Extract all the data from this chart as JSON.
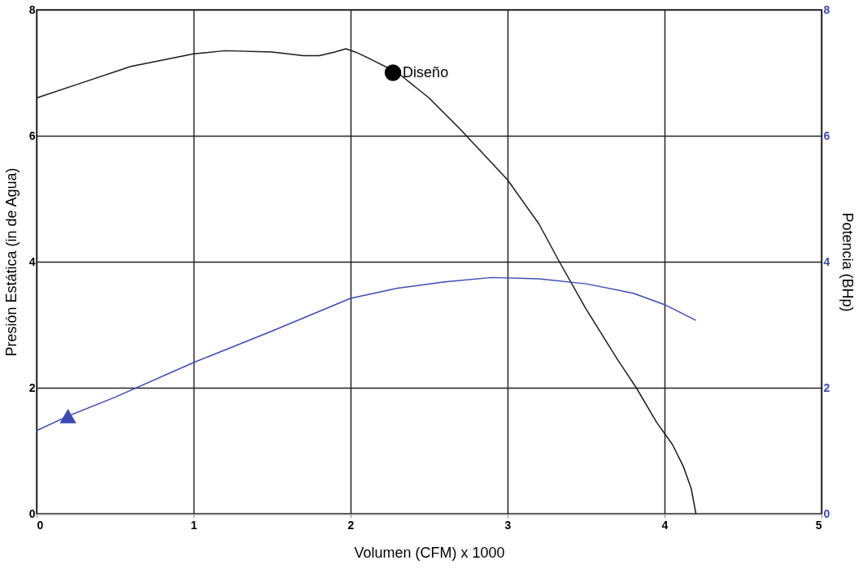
{
  "chart_data": {
    "type": "line",
    "xlabel": "Volumen  (CFM) x 1000",
    "ylabel": "Presión Estática (in de Agua)",
    "y2label": "Potencia (BHp)",
    "xlim": [
      0,
      5
    ],
    "xticks": [
      0,
      1,
      2,
      3,
      4,
      5
    ],
    "ylim": [
      0,
      8
    ],
    "yticks": [
      0,
      2,
      4,
      6,
      8
    ],
    "y2lim": [
      0,
      8
    ],
    "y2ticks": [
      0,
      2,
      4,
      6,
      8
    ],
    "grid": true,
    "series": [
      {
        "color": "#1a1a1a",
        "axis": "y",
        "x": [
          0,
          0.3,
          0.6,
          1.0,
          1.2,
          1.5,
          1.7,
          1.8,
          1.9,
          1.97,
          2.03,
          2.1,
          2.3,
          2.5,
          2.7,
          3.0,
          3.2,
          3.33,
          3.5,
          3.7,
          3.82,
          3.95,
          4.05,
          4.12,
          4.17,
          4.2
        ],
        "values": [
          6.6,
          6.85,
          7.1,
          7.3,
          7.35,
          7.33,
          7.27,
          7.27,
          7.33,
          7.38,
          7.33,
          7.25,
          7.0,
          6.6,
          6.1,
          5.3,
          4.6,
          4.0,
          3.25,
          2.45,
          2.0,
          1.45,
          1.1,
          0.75,
          0.4,
          0.0
        ]
      },
      {
        "color": "#3b4bb0",
        "axis": "y2",
        "x": [
          0,
          0.2,
          0.5,
          1.0,
          1.5,
          2.0,
          2.3,
          2.6,
          2.9,
          3.2,
          3.5,
          3.8,
          4.0,
          4.2
        ],
        "values": [
          1.32,
          1.55,
          1.85,
          2.4,
          2.9,
          3.42,
          3.58,
          3.68,
          3.75,
          3.73,
          3.65,
          3.5,
          3.32,
          3.07
        ]
      },
      {
        "type": "scatter",
        "color": "#000000",
        "axis": "y",
        "marker": "circle",
        "x": [
          2.27
        ],
        "values": [
          7.0
        ]
      },
      {
        "type": "scatter",
        "color": "#3b4bb0",
        "axis": "y2",
        "marker": "triangle",
        "x": [
          0.2
        ],
        "values": [
          1.55
        ]
      }
    ],
    "annotations": [
      {
        "text": "Diseño",
        "x": 2.27,
        "y": 7.0
      }
    ]
  }
}
